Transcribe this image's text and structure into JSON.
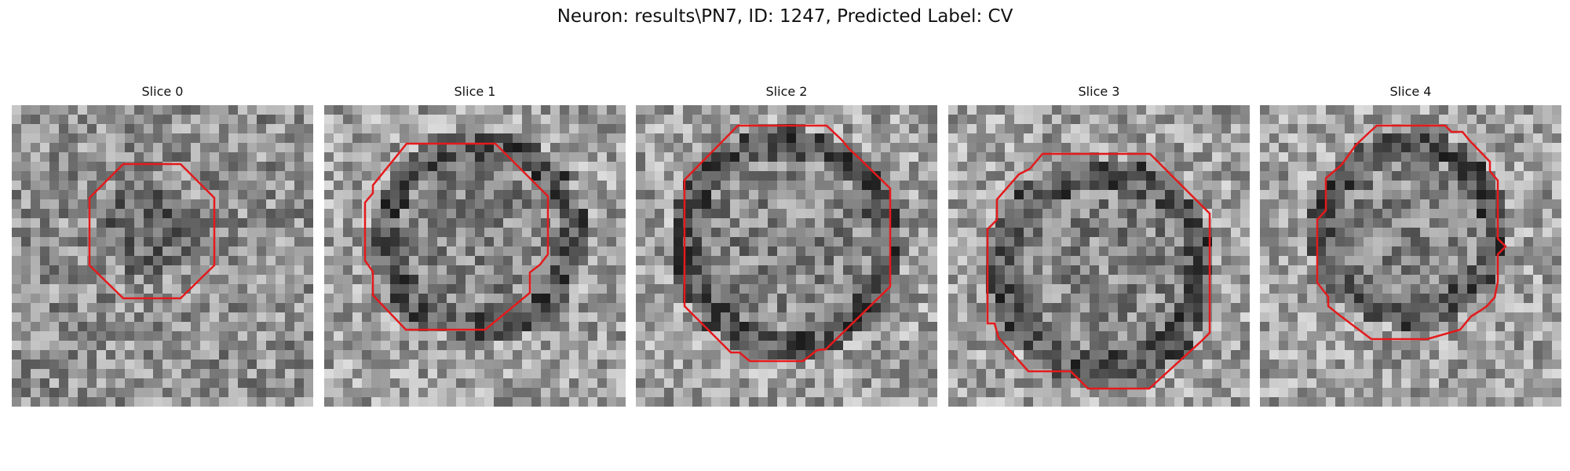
{
  "figure": {
    "title": "Neuron: results\\PN7, ID: 1247, Predicted Label: CV"
  },
  "contour_color": "#e41a1c",
  "panels": [
    {
      "title": "Slice 0"
    },
    {
      "title": "Slice 1"
    },
    {
      "title": "Slice 2"
    },
    {
      "title": "Slice 3"
    },
    {
      "title": "Slice 4"
    }
  ]
}
